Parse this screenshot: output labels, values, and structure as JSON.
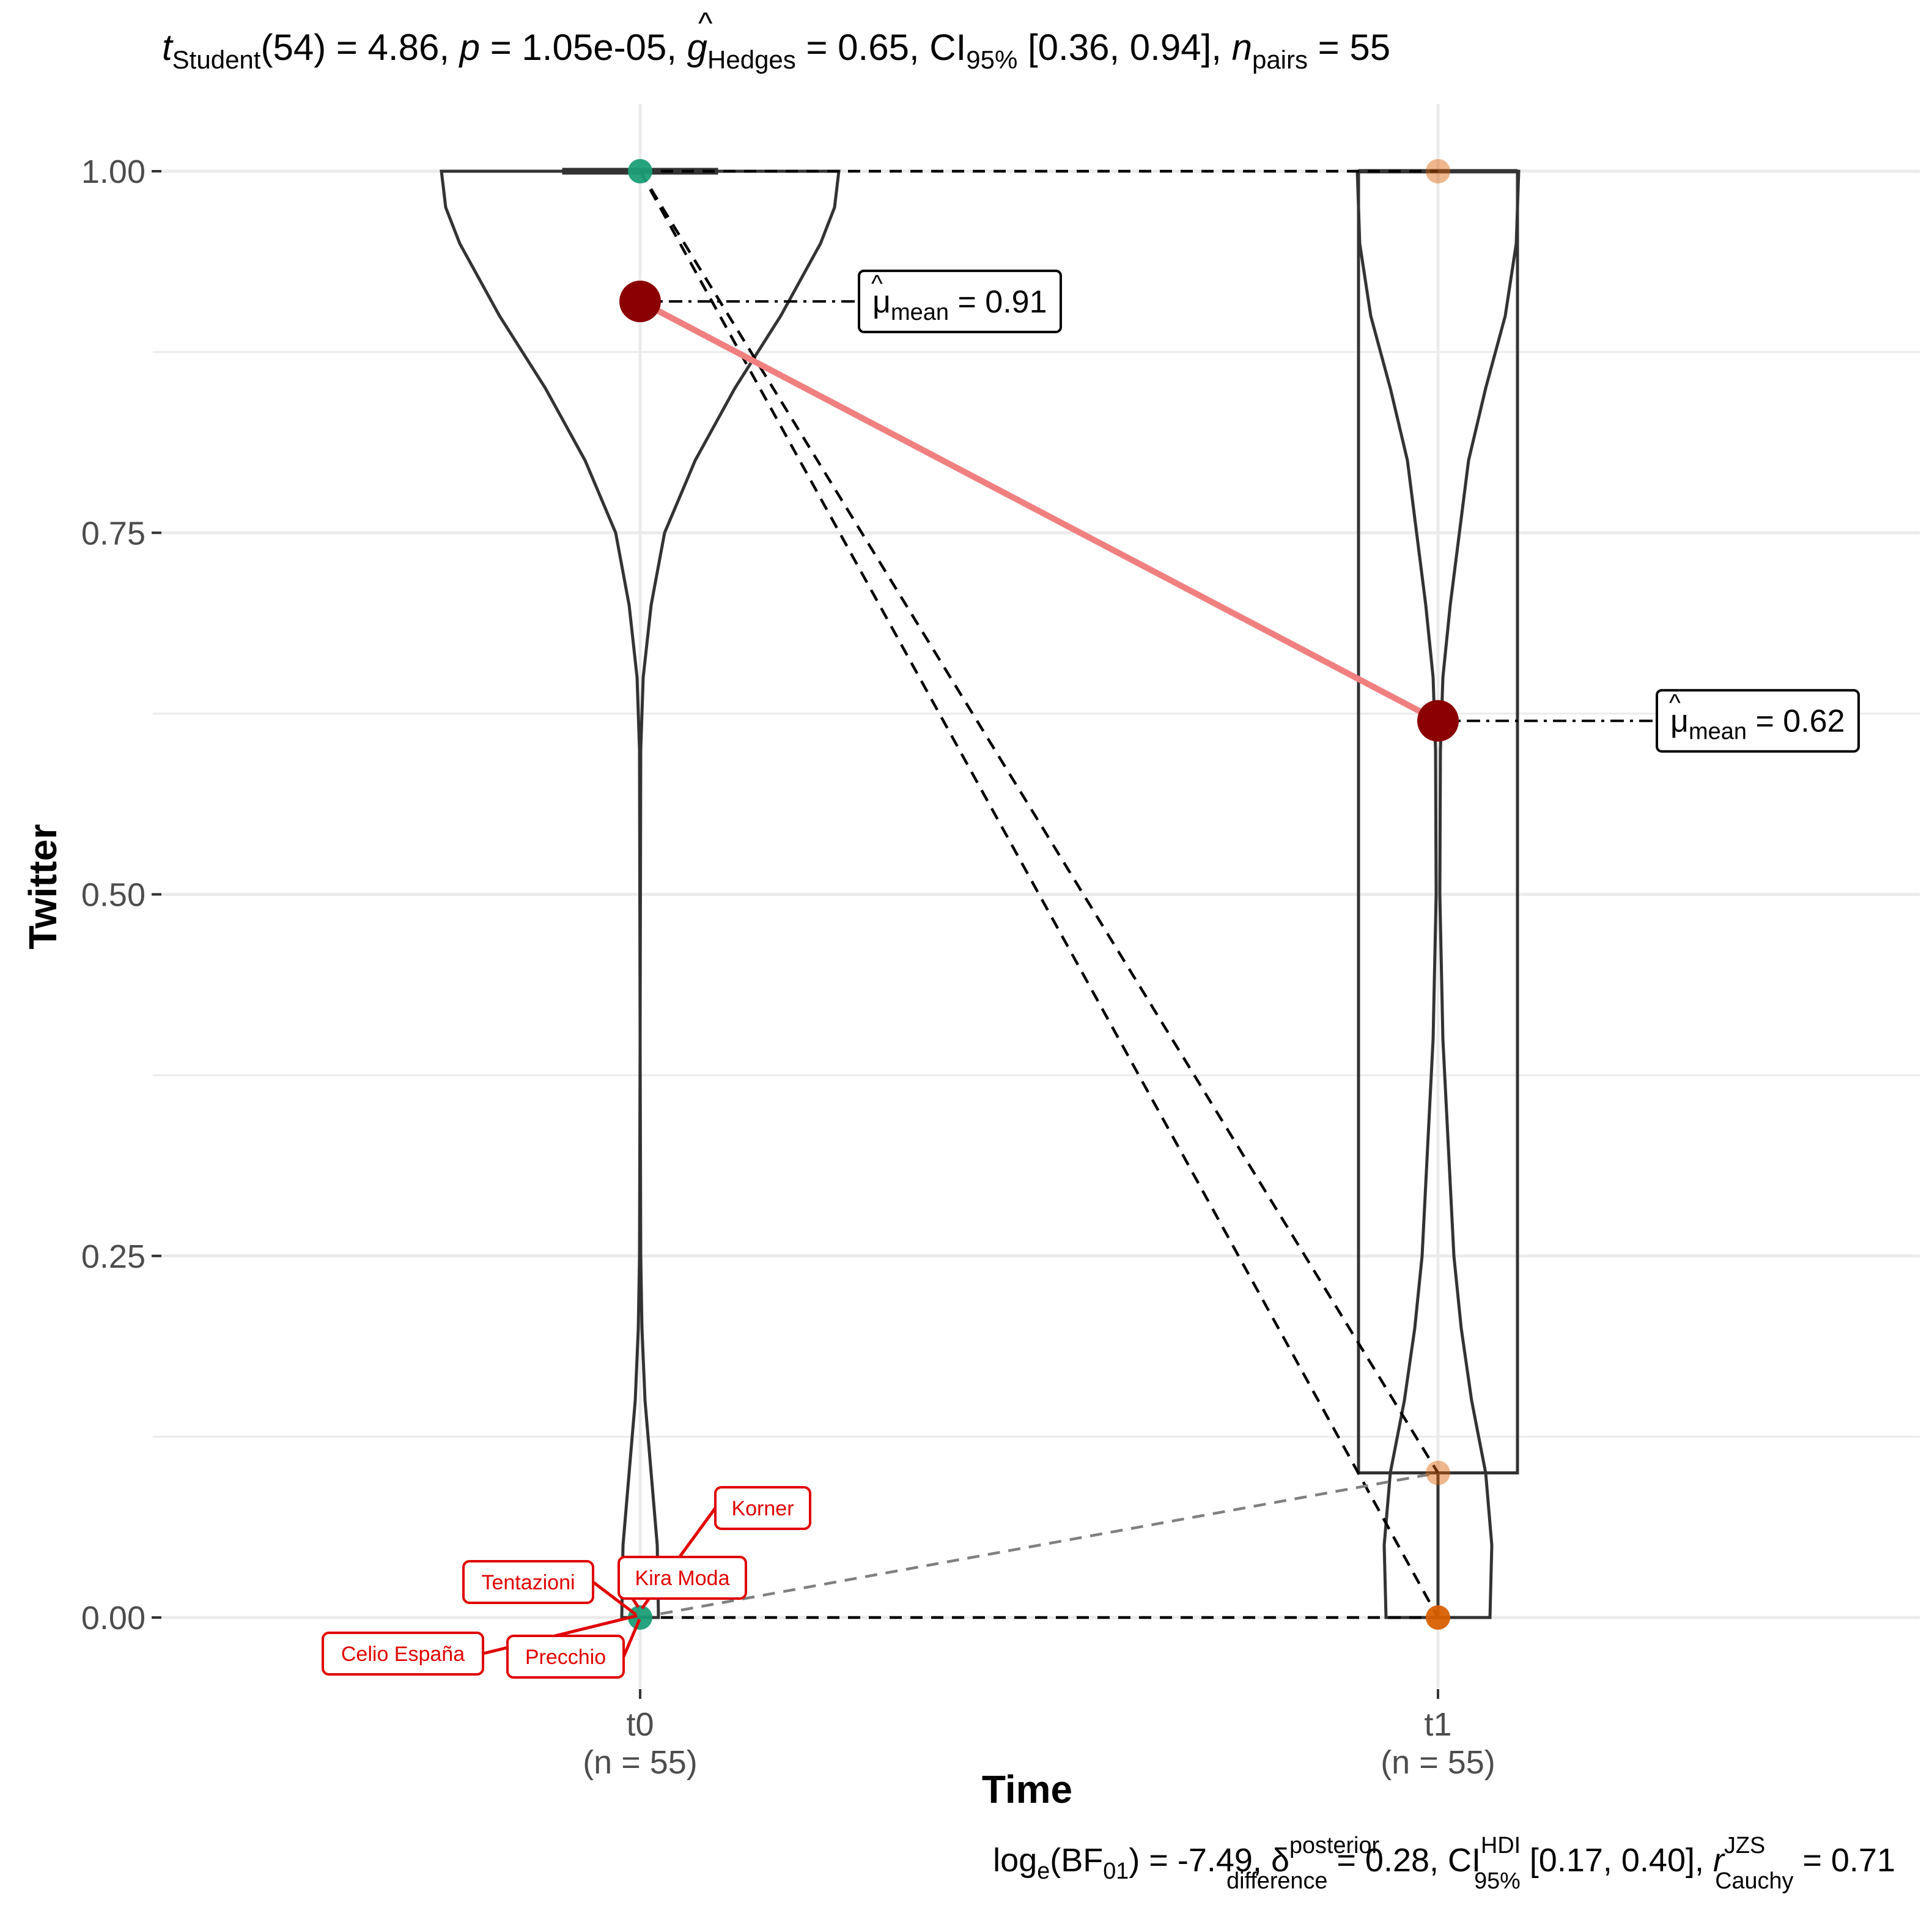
{
  "chart_data": {
    "type": "violin-box-paired",
    "title": {
      "t_sym": "t",
      "t_sub": "Student",
      "t_val": "(54) = 4.86, ",
      "p_sym": "p",
      "p_val": " = 1.05e-05, ",
      "g_sym": "g",
      "g_sub": "Hedges",
      "g_val": " = 0.65, ",
      "ci_sym": "CI",
      "ci_sub": "95%",
      "ci_val": " [0.36, 0.94], ",
      "n_sym": "n",
      "n_sub": "pairs",
      "n_val": " = 55"
    },
    "caption": {
      "log": "log",
      "log_sub": "e",
      "bf": "(BF",
      "bf_sub": "01",
      "bf_val": ") = -7.49, ",
      "delta": "δ",
      "delta_sup": "posterior",
      "delta_sub": "difference",
      "delta_val": " = 0.28, ",
      "ci": "CI",
      "ci_sup": "HDI",
      "ci_sub": "95%",
      "ci_val": " [0.17, 0.40], ",
      "r": "r",
      "r_sup": "JZS",
      "r_sub": "Cauchy",
      "r_val": " = 0.71"
    },
    "xlabel": "Time",
    "ylabel": "Twitter",
    "ylim": [
      -0.07,
      1.04
    ],
    "yticks": [
      0,
      0.25,
      0.5,
      0.75,
      1.0
    ],
    "ytick_labels": [
      "0.00",
      "0.25",
      "0.50",
      "0.75",
      "1.00"
    ],
    "categories": [
      "t0",
      "t1"
    ],
    "category_counts": [
      "(n = 55)",
      "(n = 55)"
    ],
    "grid": true,
    "groups": [
      {
        "name": "t0",
        "point_color": "#1b9e77",
        "points": [
          0.0,
          1.0
        ],
        "mean": 0.91,
        "mean_label_sym": "μ",
        "mean_label_sub": "mean",
        "mean_label_val": " = 0.91",
        "box": {
          "lower": 1.0,
          "median": 1.0,
          "upper": 1.0,
          "whisker_low": 1.0,
          "whisker_high": 1.0
        }
      },
      {
        "name": "t1",
        "point_color": "#d95f02",
        "points": [
          0.0,
          0.1,
          1.0
        ],
        "mean": 0.62,
        "mean_label_sym": "μ",
        "mean_label_sub": "mean",
        "mean_label_val": " = 0.62",
        "box": {
          "lower": 0.1,
          "median": 1.0,
          "upper": 1.0,
          "whisker_low": 0.0,
          "whisker_high": 1.0
        }
      }
    ],
    "paired_lines": [
      {
        "from": 1.0,
        "to": 1.0,
        "style": "dashed",
        "color": "#000000"
      },
      {
        "from": 1.0,
        "to": 0.1,
        "style": "dashed",
        "color": "#000000"
      },
      {
        "from": 1.0,
        "to": 0.0,
        "style": "dashed",
        "color": "#000000"
      },
      {
        "from": 0.0,
        "to": 0.1,
        "style": "dashed",
        "color": "#808080"
      },
      {
        "from": 0.0,
        "to": 0.0,
        "style": "dashed",
        "color": "#000000"
      }
    ],
    "mean_line_color": "#f08080",
    "mean_point_color": "#8b0000",
    "outlier_labels": [
      "Korner",
      "Tentazioni",
      "Kira Moda",
      "Celio España",
      "Precchio"
    ],
    "outlier_color": "#e00000"
  }
}
